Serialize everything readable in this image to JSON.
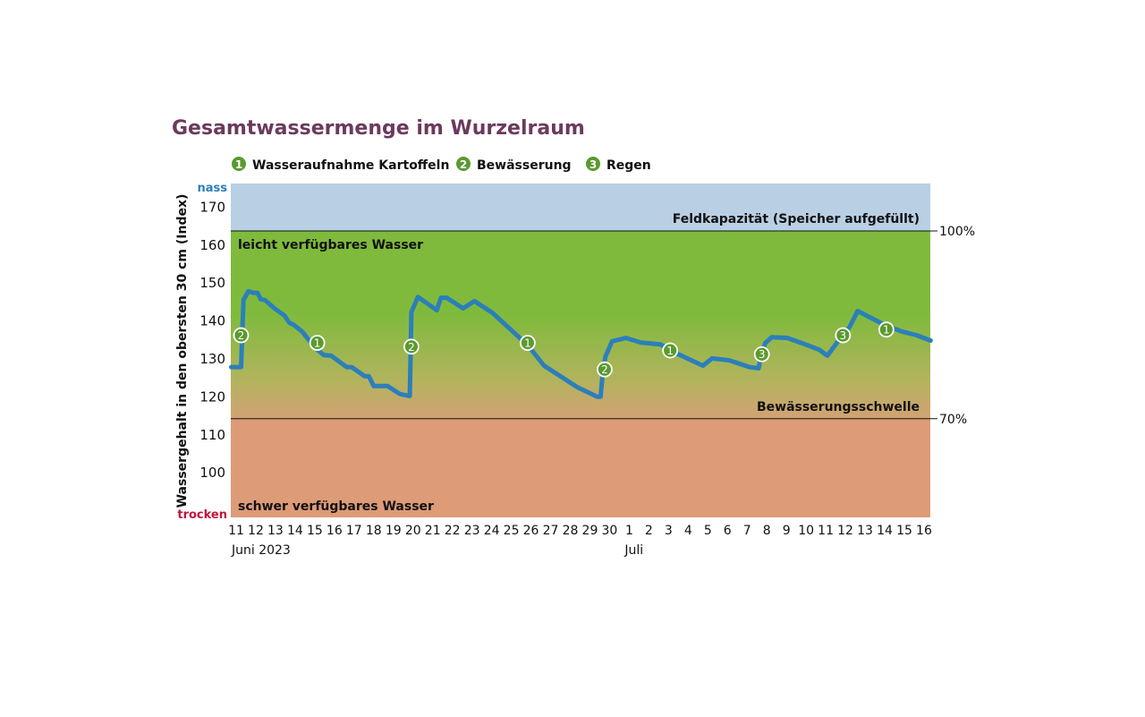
{
  "chart_data": {
    "type": "line",
    "title": "Gesamtwassermenge im Wurzelraum",
    "ylabel": "Wassergehalt in den obersten 30 cm (Index)",
    "ylim": [
      88,
      176
    ],
    "yticks": [
      100,
      110,
      120,
      130,
      140,
      150,
      160,
      170
    ],
    "y_top_label": "nass",
    "y_bottom_label": "trocken",
    "xlim": [
      "2023-06-10T18:00",
      "2023-07-16T08:00"
    ],
    "xticks": [
      "11",
      "12",
      "13",
      "14",
      "15",
      "16",
      "17",
      "18",
      "19",
      "20",
      "21",
      "22",
      "23",
      "24",
      "25",
      "26",
      "27",
      "28",
      "29",
      "30",
      "1",
      "2",
      "3",
      "4",
      "5",
      "6",
      "7",
      "8",
      "9",
      "10",
      "11",
      "12",
      "13",
      "14",
      "15",
      "16"
    ],
    "xtick_start": "2023-06-11",
    "month_labels": [
      {
        "label": "Juni 2023",
        "date": "2023-06-11"
      },
      {
        "label": "Juli",
        "date": "2023-07-01"
      }
    ],
    "legend": [
      {
        "num": "1",
        "label": "Wasseraufnahme Kartoffeln"
      },
      {
        "num": "2",
        "label": "Bewässerung"
      },
      {
        "num": "3",
        "label": "Regen"
      }
    ],
    "legend_position": "top",
    "zones": [
      {
        "label": "Feldkapazität (Speicher aufgefüllt)",
        "from": 163.5,
        "to": 176,
        "color": "#b9d0e4"
      },
      {
        "label": "leicht verfügbares Wasser",
        "from": 114,
        "to": 163.5,
        "color": "#7fba3c"
      },
      {
        "label": "schwer verfügbares Wasser",
        "from": 88,
        "to": 114,
        "color": "#dd9b78"
      }
    ],
    "thresholds": [
      {
        "label": "Bewässerungsschwelle",
        "value": 114,
        "percent": "70%"
      },
      {
        "value": 163.5,
        "percent": "100%"
      }
    ],
    "series": [
      {
        "color": "#2b7fba",
        "points": [
          [
            "2023-06-10T18:00",
            127.6
          ],
          [
            "2023-06-11T06:00",
            127.6
          ],
          [
            "2023-06-11T09:00",
            145.3
          ],
          [
            "2023-06-11T15:00",
            147.6
          ],
          [
            "2023-06-11T21:00",
            147.2
          ],
          [
            "2023-06-12T02:00",
            147.2
          ],
          [
            "2023-06-12T06:00",
            145.5
          ],
          [
            "2023-06-12T11:00",
            145.3
          ],
          [
            "2023-06-13T00:00",
            142.9
          ],
          [
            "2023-06-13T11:00",
            141.2
          ],
          [
            "2023-06-13T17:00",
            139.3
          ],
          [
            "2023-06-13T22:00",
            138.8
          ],
          [
            "2023-06-14T09:00",
            136.9
          ],
          [
            "2023-06-14T14:00",
            135.5
          ],
          [
            "2023-06-15T03:00",
            132.2
          ],
          [
            "2023-06-15T11:00",
            130.8
          ],
          [
            "2023-06-15T20:00",
            130.6
          ],
          [
            "2023-06-16T15:00",
            127.6
          ],
          [
            "2023-06-16T21:00",
            127.6
          ],
          [
            "2023-06-17T13:00",
            125.2
          ],
          [
            "2023-06-17T18:00",
            125.2
          ],
          [
            "2023-06-18T00:00",
            122.6
          ],
          [
            "2023-06-18T17:00",
            122.6
          ],
          [
            "2023-06-19T08:00",
            120.5
          ],
          [
            "2023-06-19T20:00",
            120.0
          ],
          [
            "2023-06-19T22:00",
            142.1
          ],
          [
            "2023-06-20T06:00",
            146.1
          ],
          [
            "2023-06-21T05:00",
            142.6
          ],
          [
            "2023-06-21T10:00",
            145.9
          ],
          [
            "2023-06-21T17:00",
            145.9
          ],
          [
            "2023-06-22T13:00",
            143.1
          ],
          [
            "2023-06-23T03:00",
            145.0
          ],
          [
            "2023-06-24T01:00",
            141.9
          ],
          [
            "2023-06-25T20:00",
            133.4
          ],
          [
            "2023-06-26T16:00",
            128.0
          ],
          [
            "2023-06-28T08:00",
            122.4
          ],
          [
            "2023-06-29T09:00",
            119.8
          ],
          [
            "2023-06-29T13:00",
            119.8
          ],
          [
            "2023-06-29T16:00",
            126.8
          ],
          [
            "2023-06-29T19:00",
            130.4
          ],
          [
            "2023-06-30T03:00",
            134.4
          ],
          [
            "2023-06-30T20:00",
            135.3
          ],
          [
            "2023-07-01T14:00",
            134.1
          ],
          [
            "2023-07-02T14:00",
            133.6
          ],
          [
            "2023-07-03T11:00",
            131.1
          ],
          [
            "2023-07-04T18:00",
            128.0
          ],
          [
            "2023-07-05T05:00",
            129.9
          ],
          [
            "2023-07-06T02:00",
            129.4
          ],
          [
            "2023-07-07T03:00",
            127.6
          ],
          [
            "2023-07-07T14:00",
            127.3
          ],
          [
            "2023-07-07T17:00",
            130.4
          ],
          [
            "2023-07-07T22:00",
            133.9
          ],
          [
            "2023-07-08T06:00",
            135.5
          ],
          [
            "2023-07-09T01:00",
            135.3
          ],
          [
            "2023-07-09T23:00",
            133.6
          ],
          [
            "2023-07-10T16:00",
            132.2
          ],
          [
            "2023-07-11T02:00",
            130.6
          ],
          [
            "2023-07-11T15:00",
            134.4
          ],
          [
            "2023-07-12T05:00",
            138.1
          ],
          [
            "2023-07-12T15:00",
            142.4
          ],
          [
            "2023-07-14T01:00",
            138.6
          ],
          [
            "2023-07-14T21:00",
            137.0
          ],
          [
            "2023-07-15T15:00",
            136.0
          ],
          [
            "2023-07-16T08:00",
            134.6
          ]
        ]
      }
    ],
    "annotations": [
      {
        "num": "2",
        "date": "2023-06-11T06:00",
        "value": 136
      },
      {
        "num": "1",
        "date": "2023-06-15T03:00",
        "value": 134
      },
      {
        "num": "2",
        "date": "2023-06-19T22:00",
        "value": 133
      },
      {
        "num": "1",
        "date": "2023-06-25T20:00",
        "value": 134
      },
      {
        "num": "2",
        "date": "2023-06-29T18:00",
        "value": 127
      },
      {
        "num": "1",
        "date": "2023-07-03T02:00",
        "value": 132
      },
      {
        "num": "3",
        "date": "2023-07-07T18:00",
        "value": 131
      },
      {
        "num": "3",
        "date": "2023-07-11T21:00",
        "value": 136
      },
      {
        "num": "1",
        "date": "2023-07-14T02:00",
        "value": 137.5
      }
    ],
    "colors": {
      "title": "#6b3a5e",
      "wet": "#2b7fba",
      "dry": "#c0143c",
      "marker": "#5b9a2f",
      "grid": false
    }
  }
}
